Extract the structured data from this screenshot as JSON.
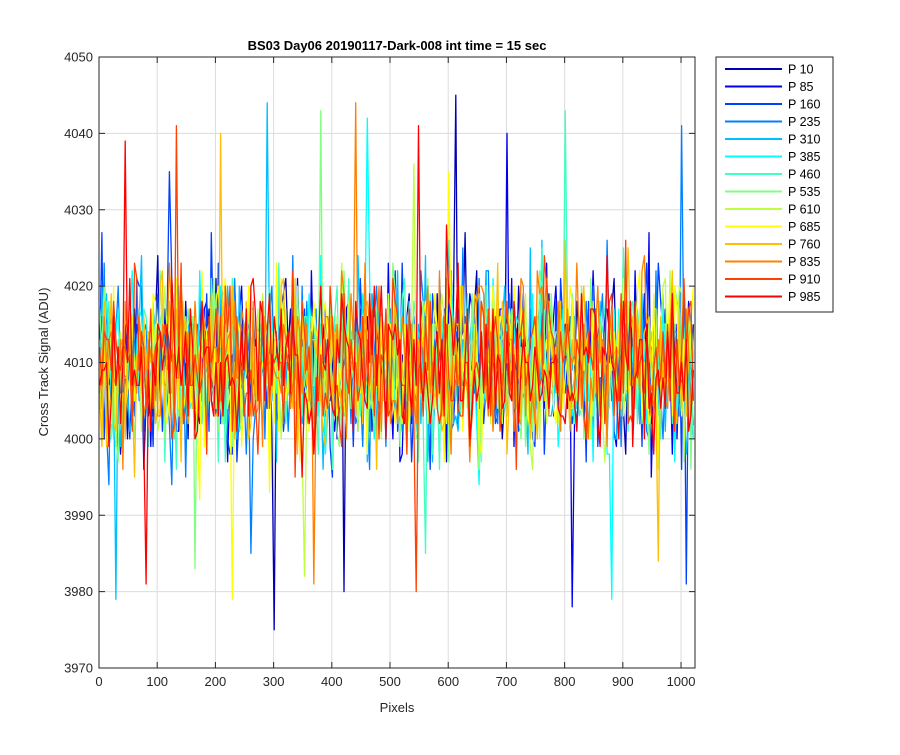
{
  "chart_data": {
    "type": "line",
    "title": "BS03 Day06 20190117-Dark-008 int time = 15 sec",
    "xlabel": "Pixels",
    "ylabel": "Cross Track Signal (ADU)",
    "xlim": [
      0,
      1024
    ],
    "ylim": [
      3970,
      4050
    ],
    "xticks": [
      0,
      100,
      200,
      300,
      400,
      500,
      600,
      700,
      800,
      900,
      1000
    ],
    "yticks": [
      3970,
      3980,
      3990,
      4000,
      4010,
      4020,
      4030,
      4040,
      4050
    ],
    "grid": true,
    "legend_position": "outside-top-right",
    "x_sampling": "pixels 1 to 1024, every 4th pixel shown",
    "series": [
      {
        "name": "P 10",
        "color": "#0000b0",
        "mean": 4010,
        "spread": 6,
        "spikes": [
          [
            615,
            4045
          ],
          [
            300,
            3975
          ],
          [
            420,
            3980
          ]
        ]
      },
      {
        "name": "P 85",
        "color": "#0000ee",
        "mean": 4010,
        "spread": 6,
        "spikes": [
          [
            700,
            4040
          ],
          [
            815,
            3978
          ]
        ]
      },
      {
        "name": "P 160",
        "color": "#0040ff",
        "mean": 4010,
        "spread": 6,
        "spikes": [
          [
            120,
            4035
          ],
          [
            1010,
            3981
          ]
        ]
      },
      {
        "name": "P 235",
        "color": "#0080ff",
        "mean": 4010,
        "spread": 6,
        "spikes": [
          [
            1000,
            4041
          ],
          [
            260,
            3985
          ]
        ]
      },
      {
        "name": "P 310",
        "color": "#00bfff",
        "mean": 4010,
        "spread": 6,
        "spikes": [
          [
            290,
            4044
          ],
          [
            28,
            3979
          ]
        ]
      },
      {
        "name": "P 385",
        "color": "#00ffff",
        "mean": 4010,
        "spread": 6,
        "spikes": [
          [
            460,
            4042
          ],
          [
            880,
            3979
          ]
        ]
      },
      {
        "name": "P 460",
        "color": "#40ffbf",
        "mean": 4010,
        "spread": 6,
        "spikes": [
          [
            800,
            4043
          ],
          [
            560,
            3985
          ]
        ]
      },
      {
        "name": "P 535",
        "color": "#80ff80",
        "mean": 4010,
        "spread": 6,
        "spikes": [
          [
            380,
            4043
          ],
          [
            165,
            3983
          ]
        ]
      },
      {
        "name": "P 610",
        "color": "#bfff40",
        "mean": 4010,
        "spread": 6,
        "spikes": [
          [
            540,
            4036
          ],
          [
            355,
            3982
          ]
        ]
      },
      {
        "name": "P 685",
        "color": "#ffff00",
        "mean": 4010,
        "spread": 6,
        "spikes": [
          [
            600,
            4035
          ],
          [
            228,
            3979
          ]
        ]
      },
      {
        "name": "P 760",
        "color": "#ffbf00",
        "mean": 4010,
        "spread": 6,
        "spikes": [
          [
            210,
            4040
          ],
          [
            960,
            3984
          ]
        ]
      },
      {
        "name": "P 835",
        "color": "#ff8000",
        "mean": 4010,
        "spread": 6,
        "spikes": [
          [
            440,
            4044
          ],
          [
            370,
            3981
          ]
        ]
      },
      {
        "name": "P 910",
        "color": "#ff4000",
        "mean": 4010,
        "spread": 6,
        "spikes": [
          [
            135,
            4041
          ],
          [
            545,
            3980
          ]
        ]
      },
      {
        "name": "P 985",
        "color": "#ff0000",
        "mean": 4010,
        "spread": 6,
        "spikes": [
          [
            45,
            4039
          ],
          [
            80,
            3981
          ],
          [
            550,
            4041
          ]
        ]
      }
    ]
  }
}
